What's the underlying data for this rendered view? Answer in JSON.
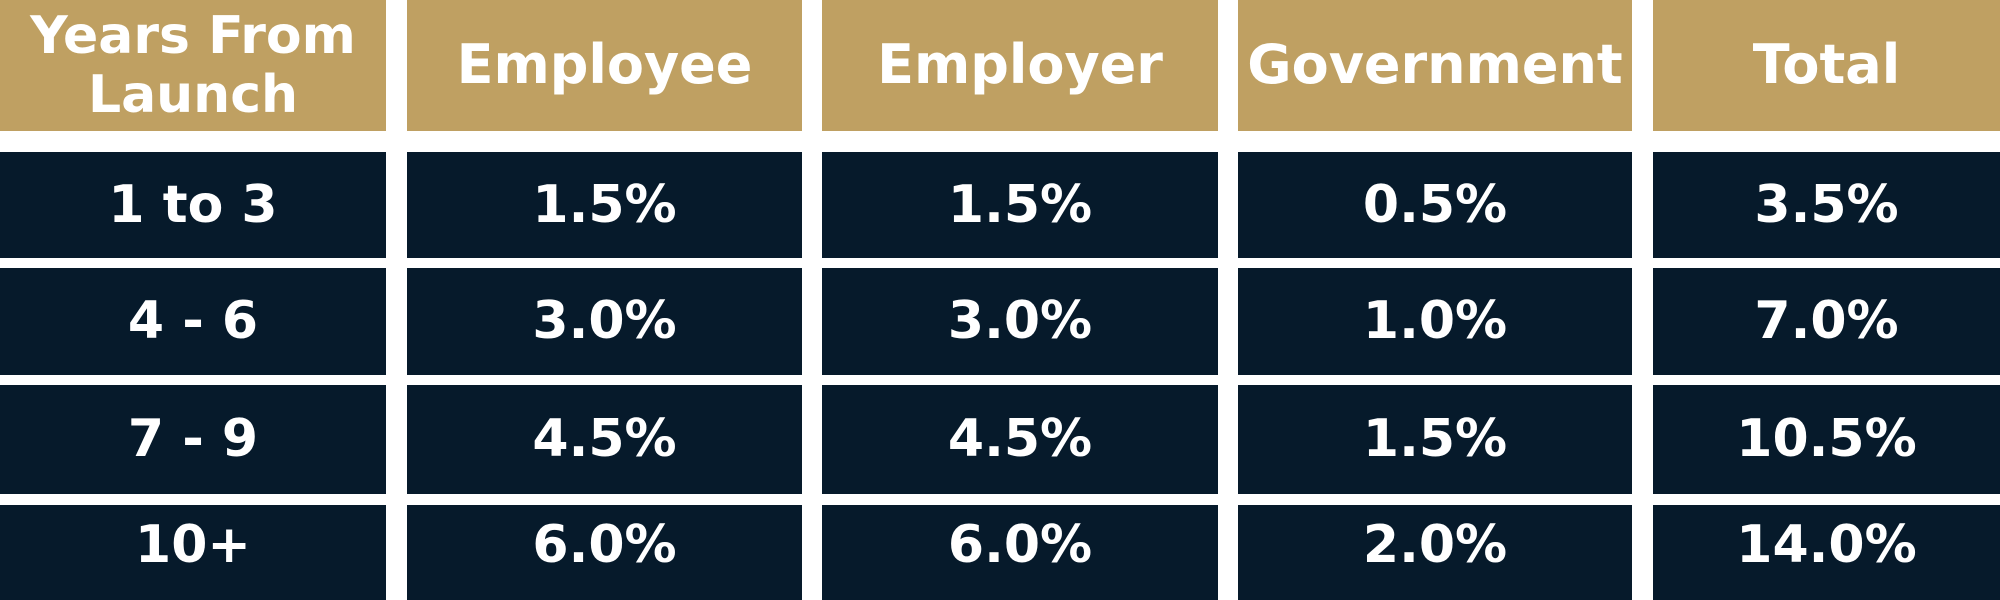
{
  "colors": {
    "header_bg": "#bfa062",
    "body_bg": "#061a2b",
    "text": "#ffffff",
    "gap": "#ffffff"
  },
  "table": {
    "headers": [
      "Years From Launch",
      "Employee",
      "Employer",
      "Government",
      "Total"
    ],
    "rows": [
      [
        "1 to 3",
        "1.5%",
        "1.5%",
        "0.5%",
        "3.5%"
      ],
      [
        "4 - 6",
        "3.0%",
        "3.0%",
        "1.0%",
        "7.0%"
      ],
      [
        "7 - 9",
        "4.5%",
        "4.5%",
        "1.5%",
        "10.5%"
      ],
      [
        "10+",
        "6.0%",
        "6.0%",
        "2.0%",
        "14.0%"
      ]
    ]
  },
  "chart_data": {
    "type": "table",
    "columns": [
      "Years From Launch",
      "Employee",
      "Employer",
      "Government",
      "Total"
    ],
    "rows": [
      {
        "Years From Launch": "1 to 3",
        "Employee": 1.5,
        "Employer": 1.5,
        "Government": 0.5,
        "Total": 3.5
      },
      {
        "Years From Launch": "4 - 6",
        "Employee": 3.0,
        "Employer": 3.0,
        "Government": 1.0,
        "Total": 7.0
      },
      {
        "Years From Launch": "7 - 9",
        "Employee": 4.5,
        "Employer": 4.5,
        "Government": 1.5,
        "Total": 10.5
      },
      {
        "Years From Launch": "10+",
        "Employee": 6.0,
        "Employer": 6.0,
        "Government": 2.0,
        "Total": 14.0
      }
    ]
  }
}
